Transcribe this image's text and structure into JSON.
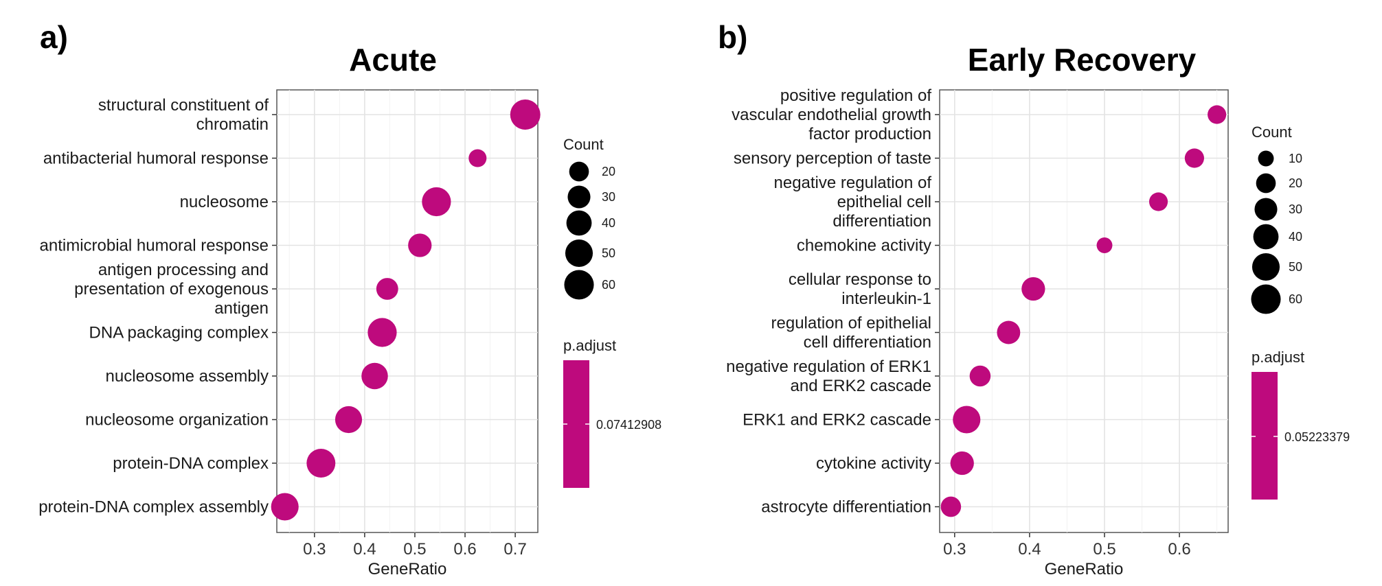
{
  "figure": {
    "panels": [
      {
        "panel_label": "a)",
        "title": "Acute",
        "xlabel": "GeneRatio",
        "xticks": [
          0.3,
          0.4,
          0.5,
          0.6,
          0.7
        ],
        "legend_count_title": "Count",
        "legend_padj_title": "p.adjust",
        "legend_padj_value": "0.07412908"
      },
      {
        "panel_label": "b)",
        "title": "Early Recovery",
        "xlabel": "GeneRatio",
        "xticks": [
          0.3,
          0.4,
          0.5,
          0.6
        ],
        "legend_count_title": "Count",
        "legend_padj_title": "p.adjust",
        "legend_padj_value": "0.05223379"
      }
    ]
  },
  "chart_data": [
    {
      "type": "scatter",
      "title": "Acute",
      "xlabel": "GeneRatio",
      "ylabel": "",
      "xlim": [
        0.225,
        0.745
      ],
      "grid": true,
      "point_color": "#be0a7d",
      "size_legend": {
        "title": "Count",
        "values": [
          20,
          30,
          40,
          50,
          60
        ]
      },
      "color_legend": {
        "title": "p.adjust",
        "values": [
          "0.07412908"
        ]
      },
      "categories": [
        [
          "structural constituent of",
          "chromatin"
        ],
        [
          "antibacterial humoral response"
        ],
        [
          "nucleosome"
        ],
        [
          "antimicrobial humoral response"
        ],
        [
          "antigen processing and",
          "presentation of exogenous",
          "antigen"
        ],
        [
          "DNA packaging complex"
        ],
        [
          "nucleosome assembly"
        ],
        [
          "nucleosome organization"
        ],
        [
          "protein-DNA complex"
        ],
        [
          "protein-DNA complex assembly"
        ]
      ],
      "points": [
        {
          "x": 0.72,
          "count": 63
        },
        {
          "x": 0.625,
          "count": 15
        },
        {
          "x": 0.543,
          "count": 57
        },
        {
          "x": 0.51,
          "count": 33
        },
        {
          "x": 0.445,
          "count": 27
        },
        {
          "x": 0.435,
          "count": 57
        },
        {
          "x": 0.42,
          "count": 45
        },
        {
          "x": 0.368,
          "count": 47
        },
        {
          "x": 0.313,
          "count": 56
        },
        {
          "x": 0.241,
          "count": 50
        }
      ]
    },
    {
      "type": "scatter",
      "title": "Early Recovery",
      "xlabel": "GeneRatio",
      "ylabel": "",
      "xlim": [
        0.28,
        0.665
      ],
      "grid": true,
      "point_color": "#be0a7d",
      "size_legend": {
        "title": "Count",
        "values": [
          10,
          20,
          30,
          40,
          50,
          60
        ]
      },
      "color_legend": {
        "title": "p.adjust",
        "values": [
          "0.05223379"
        ]
      },
      "categories": [
        [
          "positive regulation of",
          "vascular endothelial growth",
          "factor production"
        ],
        [
          "sensory perception of taste"
        ],
        [
          "negative regulation of",
          "epithelial cell",
          "differentiation"
        ],
        [
          "chemokine activity"
        ],
        [
          "cellular response to",
          "interleukin-1"
        ],
        [
          "regulation of epithelial",
          "cell differentiation"
        ],
        [
          "negative regulation of ERK1",
          "and ERK2 cascade"
        ],
        [
          "ERK1 and ERK2 cascade"
        ],
        [
          "cytokine activity"
        ],
        [
          "astrocyte differentiation"
        ]
      ],
      "points": [
        {
          "x": 0.65,
          "count": 17
        },
        {
          "x": 0.62,
          "count": 19
        },
        {
          "x": 0.572,
          "count": 17
        },
        {
          "x": 0.5,
          "count": 10
        },
        {
          "x": 0.405,
          "count": 33
        },
        {
          "x": 0.372,
          "count": 32
        },
        {
          "x": 0.334,
          "count": 24
        },
        {
          "x": 0.316,
          "count": 50
        },
        {
          "x": 0.31,
          "count": 33
        },
        {
          "x": 0.295,
          "count": 22
        }
      ]
    }
  ]
}
